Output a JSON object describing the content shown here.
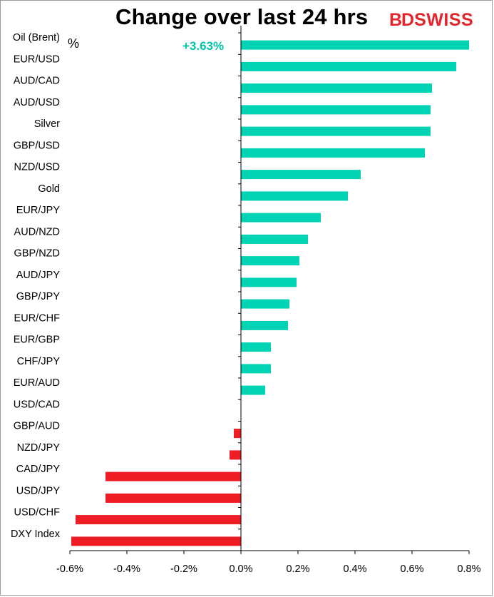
{
  "title": "Change over last 24 hrs",
  "brand": {
    "part1": "BD",
    "part2": "SWISS",
    "color": "#e3262c"
  },
  "unit_label": "%",
  "annotation": "+3.63%",
  "colors": {
    "positive": "#00d4b4",
    "negative": "#ee1c25",
    "annotation": "#00c4a8"
  },
  "chart_data": {
    "type": "bar",
    "orientation": "horizontal",
    "categories": [
      "Oil (Brent)",
      "EUR/USD",
      "AUD/CAD",
      "AUD/USD",
      "Silver",
      "GBP/USD",
      "NZD/USD",
      "Gold",
      "EUR/JPY",
      "AUD/NZD",
      "GBP/NZD",
      "AUD/JPY",
      "GBP/JPY",
      "EUR/CHF",
      "EUR/GBP",
      "CHF/JPY",
      "EUR/AUD",
      "USD/CAD",
      "GBP/AUD",
      "NZD/JPY",
      "CAD/JPY",
      "USD/JPY",
      "USD/CHF",
      "DXY Index"
    ],
    "values": [
      0.8,
      0.755,
      0.67,
      0.665,
      0.665,
      0.645,
      0.42,
      0.375,
      0.28,
      0.235,
      0.205,
      0.195,
      0.17,
      0.165,
      0.105,
      0.105,
      0.085,
      0.0,
      -0.025,
      -0.04,
      -0.475,
      -0.475,
      -0.58,
      -0.595
    ],
    "xlim": [
      -0.6,
      0.8
    ],
    "xticks": [
      "-0.6%",
      "-0.4%",
      "-0.2%",
      "0.0%",
      "0.2%",
      "0.4%",
      "0.6%",
      "0.8%"
    ],
    "xtick_values": [
      -0.6,
      -0.4,
      -0.2,
      0.0,
      0.2,
      0.4,
      0.6,
      0.8
    ],
    "note": "+3.63% label marks Oil (Brent) bar which extends beyond axis",
    "grid": false,
    "legend": "none"
  }
}
